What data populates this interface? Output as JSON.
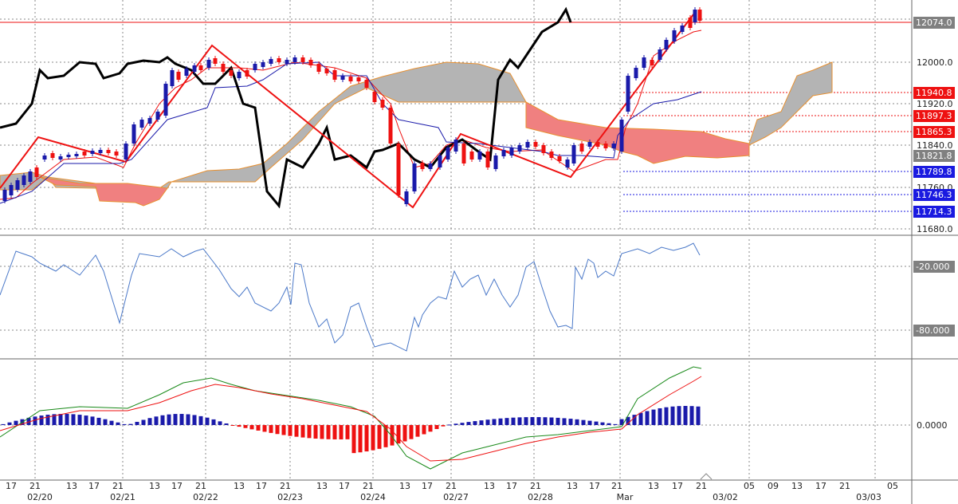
{
  "colors": {
    "background": "#ffffff",
    "grid": "#888888",
    "bull": "#1a1aaa",
    "bear": "#ee1111",
    "price_line": "#000000",
    "zigzag": "#ee1111",
    "tenkan": "#ee1111",
    "kijun": "#1a1aaa",
    "cloud_gray": "#b4b4b4",
    "cloud_red": "#f08080",
    "cloud_edge": "#e89030",
    "oscillator": "#4a78c8",
    "macd_line": "#1a8a1a",
    "signal_line": "#ee1111",
    "tag_red": "#ee1111",
    "tag_blue": "#1a1ae0",
    "tag_gray": "#808080"
  },
  "price_axis": {
    "ticks": [
      "12000.0",
      "11920.0",
      "11840.0",
      "11760.0",
      "11680.0"
    ],
    "tags": [
      {
        "label": "12074.0",
        "kind": "gray"
      },
      {
        "label": "11940.8",
        "kind": "red"
      },
      {
        "label": "11897.3",
        "kind": "red"
      },
      {
        "label": "11865.3",
        "kind": "red"
      },
      {
        "label": "11821.8",
        "kind": "gray"
      },
      {
        "label": "11789.8",
        "kind": "blue"
      },
      {
        "label": "11746.3",
        "kind": "blue"
      },
      {
        "label": "11714.3",
        "kind": "blue"
      }
    ]
  },
  "oscillator_axis": {
    "ticks": [
      "-20.000",
      "-80.000"
    ]
  },
  "macd_axis": {
    "ticks": [
      "0.0000"
    ]
  },
  "time_axis": {
    "hours": [
      "17",
      "21",
      "13",
      "17",
      "21",
      "13",
      "17",
      "21",
      "13",
      "17",
      "21",
      "13",
      "17",
      "21",
      "13",
      "17",
      "21",
      "13",
      "17",
      "21",
      "13",
      "17",
      "21",
      "13",
      "17",
      "21",
      "05",
      "09",
      "13",
      "17",
      "21",
      "05"
    ],
    "dates": [
      "02/20",
      "02/21",
      "02/22",
      "02/23",
      "02/24",
      "02/27",
      "02/28",
      "Mar",
      "03/02",
      "03/03"
    ]
  },
  "chart_data": {
    "type": "candlestick",
    "panes": [
      "price with ichimoku cloud",
      "oscillator",
      "macd histogram"
    ]
  }
}
